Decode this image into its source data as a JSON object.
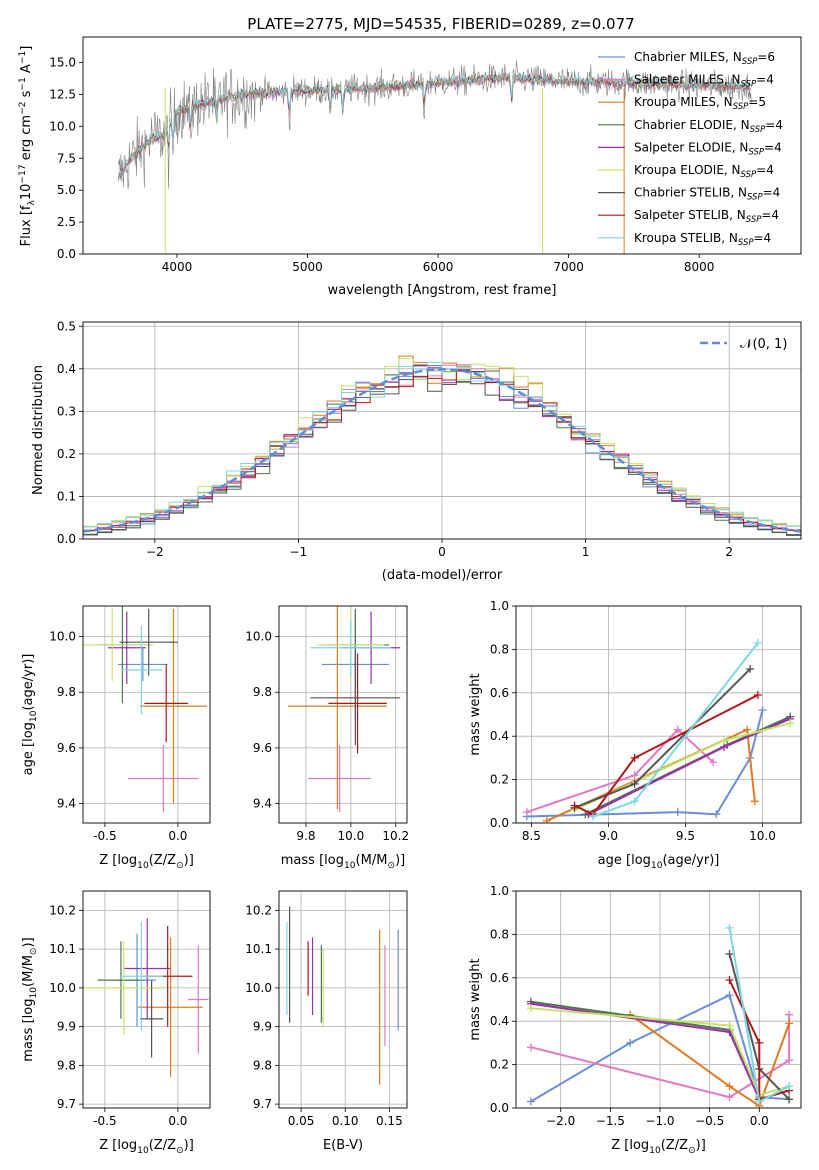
{
  "figure_title": "PLATE=2775, MJD=54535, FIBERID=0289, z=0.077",
  "colors": {
    "chabrier_miles": "#6a8fd8",
    "salpeter_miles": "#e377c2",
    "kroupa_miles": "#e07b20",
    "chabrier_elodie": "#4a7a4a",
    "salpeter_elodie": "#9b2fae",
    "kroupa_elodie": "#c6e26a",
    "chabrier_stelib": "#555555",
    "salpeter_stelib": "#b01818",
    "kroupa_stelib": "#7dd8df",
    "data": "#7f7f7f",
    "normal": "#5b8fd6"
  },
  "chart_data": [
    {
      "id": "spectrum",
      "type": "line",
      "title": "PLATE=2775, MJD=54535, FIBERID=0289, z=0.077",
      "xlabel": "wavelength [Angstrom, rest frame]",
      "ylabel_parts": [
        "Flux [f",
        "λ",
        "10",
        "−17",
        " erg cm",
        "−2",
        " s",
        "−1",
        " A",
        "−1",
        "]"
      ],
      "xlim": [
        3280,
        8780
      ],
      "ylim": [
        0,
        17
      ],
      "xticks": [
        4000,
        5000,
        6000,
        7000,
        8000
      ],
      "yticks": [
        0.0,
        2.5,
        5.0,
        7.5,
        10.0,
        12.5,
        15.0
      ],
      "legend_position": "right",
      "series": [
        {
          "key": "chabrier_miles",
          "name": "Chabrier MILES, N",
          "sub": "SSP",
          "eq": "=6"
        },
        {
          "key": "salpeter_miles",
          "name": "Salpeter MILES, N",
          "sub": "SSP",
          "eq": "=4"
        },
        {
          "key": "kroupa_miles",
          "name": "Kroupa MILES, N",
          "sub": "SSP",
          "eq": "=5"
        },
        {
          "key": "chabrier_elodie",
          "name": "Chabrier ELODIE, N",
          "sub": "SSP",
          "eq": "=4"
        },
        {
          "key": "salpeter_elodie",
          "name": "Salpeter ELODIE, N",
          "sub": "SSP",
          "eq": "=4"
        },
        {
          "key": "kroupa_elodie",
          "name": "Kroupa ELODIE, N",
          "sub": "SSP",
          "eq": "=4"
        },
        {
          "key": "chabrier_stelib",
          "name": "Chabrier STELIB, N",
          "sub": "SSP",
          "eq": "=4"
        },
        {
          "key": "salpeter_stelib",
          "name": "Salpeter STELIB, N",
          "sub": "SSP",
          "eq": "=4"
        },
        {
          "key": "kroupa_stelib",
          "name": "Kroupa STELIB, N",
          "sub": "SSP",
          "eq": "=4"
        }
      ],
      "continuum": [
        [
          3550,
          6.0
        ],
        [
          3650,
          7.5
        ],
        [
          3800,
          9.0
        ],
        [
          3900,
          9.3
        ],
        [
          4000,
          11.2
        ],
        [
          4200,
          11.8
        ],
        [
          4500,
          12.5
        ],
        [
          5000,
          12.8
        ],
        [
          5500,
          13.0
        ],
        [
          6000,
          13.4
        ],
        [
          6500,
          13.8
        ],
        [
          7000,
          13.5
        ],
        [
          7500,
          13.4
        ],
        [
          8000,
          13.2
        ],
        [
          8400,
          13.1
        ]
      ],
      "absorption_lines": [
        3934,
        3969,
        4102,
        4304,
        4861,
        5175,
        5270,
        5893,
        6563
      ],
      "vertical_spikes": [
        [
          3910,
          "kroupa_elodie"
        ],
        [
          6800,
          "kroupa_elodie"
        ],
        [
          7425,
          "kroupa_miles"
        ]
      ]
    },
    {
      "id": "residuals",
      "type": "histogram",
      "xlabel": "(data-model)/error",
      "ylabel": "Normed distribution",
      "xlim": [
        -2.5,
        2.5
      ],
      "ylim": [
        0,
        0.51
      ],
      "xticks": [
        -2,
        -1,
        0,
        1,
        2
      ],
      "xticklabels": [
        "−2",
        "−1",
        "0",
        "1",
        "2"
      ],
      "yticks": [
        0.0,
        0.1,
        0.2,
        0.3,
        0.4,
        0.5
      ],
      "grid": true,
      "bin_width": 0.1,
      "legend": {
        "label": "𝒩(0, 1)",
        "position": "top-right"
      },
      "normal_curve": {
        "mean": 0,
        "sigma": 1
      }
    },
    {
      "id": "age_vs_z",
      "type": "errorbar",
      "xlabel_parts": [
        "Z [log",
        "10",
        "(Z/Z",
        "⊙",
        ")]"
      ],
      "ylabel_parts": [
        "age  [log",
        "10",
        "(age/yr)]"
      ],
      "xlim": [
        -0.65,
        0.22
      ],
      "ylim": [
        9.33,
        10.11
      ],
      "xticks": [
        -0.5,
        0.0
      ],
      "yticks": [
        9.4,
        9.6,
        9.8,
        10.0
      ],
      "grid": true,
      "points": [
        {
          "key": "chabrier_miles",
          "x": -0.24,
          "y": 9.9,
          "xerr": 0.17,
          "yerr": 0.06
        },
        {
          "key": "salpeter_miles",
          "x": -0.1,
          "y": 9.49,
          "xerr": 0.24,
          "yerr": 0.12
        },
        {
          "key": "kroupa_miles",
          "x": -0.03,
          "y": 9.75,
          "xerr": 0.23,
          "yerr": 0.35
        },
        {
          "key": "chabrier_elodie",
          "x": -0.38,
          "y": 9.97,
          "xerr": 0.16,
          "yerr": 0.21
        },
        {
          "key": "salpeter_elodie",
          "x": -0.35,
          "y": 9.96,
          "xerr": 0.13,
          "yerr": 0.13
        },
        {
          "key": "kroupa_elodie",
          "x": -0.45,
          "y": 9.97,
          "xerr": 0.28,
          "yerr": 0.13
        },
        {
          "key": "chabrier_stelib",
          "x": -0.2,
          "y": 9.98,
          "xerr": 0.2,
          "yerr": 0.12
        },
        {
          "key": "salpeter_stelib",
          "x": -0.08,
          "y": 9.76,
          "xerr": 0.15,
          "yerr": 0.14
        },
        {
          "key": "kroupa_stelib",
          "x": -0.25,
          "y": 9.88,
          "xerr": 0.14,
          "yerr": 0.16
        }
      ]
    },
    {
      "id": "age_vs_mass",
      "type": "errorbar",
      "xlabel_parts": [
        "mass [log",
        "10",
        "(M/M",
        "⊙",
        ")]"
      ],
      "xlim": [
        9.68,
        10.25
      ],
      "ylim": [
        9.33,
        10.11
      ],
      "xticks": [
        9.8,
        10.0,
        10.2
      ],
      "yticks": [
        9.4,
        9.6,
        9.8,
        10.0
      ],
      "grid": true,
      "points": [
        {
          "key": "chabrier_miles",
          "x": 10.02,
          "y": 9.9,
          "xerr": 0.15,
          "yerr": 0.2
        },
        {
          "key": "salpeter_miles",
          "x": 9.95,
          "y": 9.49,
          "xerr": 0.14,
          "yerr": 0.12
        },
        {
          "key": "kroupa_miles",
          "x": 9.94,
          "y": 9.75,
          "xerr": 0.22,
          "yerr": 0.37
        },
        {
          "key": "chabrier_elodie",
          "x": 10.02,
          "y": 9.97,
          "xerr": 0.15,
          "yerr": 0.13
        },
        {
          "key": "salpeter_elodie",
          "x": 10.09,
          "y": 9.96,
          "xerr": 0.13,
          "yerr": 0.13
        },
        {
          "key": "kroupa_elodie",
          "x": 10.0,
          "y": 9.97,
          "xerr": 0.15,
          "yerr": 0.13
        },
        {
          "key": "chabrier_stelib",
          "x": 10.02,
          "y": 9.78,
          "xerr": 0.2,
          "yerr": 0.17
        },
        {
          "key": "salpeter_stelib",
          "x": 10.03,
          "y": 9.76,
          "xerr": 0.13,
          "yerr": 0.18
        },
        {
          "key": "kroupa_stelib",
          "x": 10.0,
          "y": 9.96,
          "xerr": 0.18,
          "yerr": 0.1
        }
      ]
    },
    {
      "id": "weight_vs_age",
      "type": "line",
      "xlabel_parts": [
        "age  [log",
        "10",
        "(age/yr)]"
      ],
      "ylabel": "mass weight",
      "xlim": [
        8.4,
        10.25
      ],
      "ylim": [
        0,
        1.0
      ],
      "xticks": [
        8.5,
        9.0,
        9.5,
        10.0
      ],
      "yticks": [
        0.0,
        0.2,
        0.4,
        0.6,
        0.8,
        1.0
      ],
      "grid": true,
      "series": [
        {
          "key": "chabrier_miles",
          "points": [
            [
              8.47,
              0.03
            ],
            [
              9.45,
              0.05
            ],
            [
              9.7,
              0.04
            ],
            [
              9.92,
              0.3
            ],
            [
              10.0,
              0.52
            ]
          ]
        },
        {
          "key": "salpeter_miles",
          "points": [
            [
              8.47,
              0.05
            ],
            [
              9.17,
              0.22
            ],
            [
              9.45,
              0.43
            ],
            [
              9.68,
              0.28
            ]
          ]
        },
        {
          "key": "kroupa_miles",
          "points": [
            [
              8.6,
              0.01
            ],
            [
              9.9,
              0.43
            ],
            [
              9.95,
              0.1
            ]
          ]
        },
        {
          "key": "chabrier_elodie",
          "points": [
            [
              8.85,
              0.04
            ],
            [
              9.77,
              0.36
            ],
            [
              10.18,
              0.49
            ]
          ]
        },
        {
          "key": "salpeter_elodie",
          "points": [
            [
              8.87,
              0.04
            ],
            [
              9.75,
              0.35
            ],
            [
              10.18,
              0.48
            ]
          ]
        },
        {
          "key": "kroupa_elodie",
          "points": [
            [
              8.78,
              0.06
            ],
            [
              9.75,
              0.38
            ],
            [
              10.18,
              0.46
            ]
          ]
        },
        {
          "key": "chabrier_stelib",
          "points": [
            [
              8.78,
              0.07
            ],
            [
              9.17,
              0.18
            ],
            [
              9.92,
              0.71
            ]
          ]
        },
        {
          "key": "salpeter_stelib",
          "points": [
            [
              8.78,
              0.08
            ],
            [
              8.9,
              0.04
            ],
            [
              9.17,
              0.3
            ],
            [
              9.97,
              0.59
            ]
          ]
        },
        {
          "key": "kroupa_stelib",
          "points": [
            [
              8.9,
              0.03
            ],
            [
              9.17,
              0.1
            ],
            [
              9.97,
              0.83
            ]
          ]
        }
      ]
    },
    {
      "id": "mass_vs_z",
      "type": "errorbar",
      "xlabel_parts": [
        "Z [log",
        "10",
        "(Z/Z",
        "⊙",
        ")]"
      ],
      "ylabel_parts": [
        "mass [log",
        "10",
        "(M/M",
        "⊙",
        ")]"
      ],
      "xlim": [
        -0.65,
        0.22
      ],
      "ylim": [
        9.69,
        10.25
      ],
      "xticks": [
        -0.5,
        0.0
      ],
      "yticks": [
        9.7,
        9.8,
        9.9,
        10.0,
        10.1,
        10.2
      ],
      "grid": true,
      "points": [
        {
          "key": "chabrier_miles",
          "x": -0.28,
          "y": 10.02,
          "xerr": 0.13,
          "yerr": 0.12
        },
        {
          "key": "salpeter_miles",
          "x": 0.14,
          "y": 9.97,
          "xerr": 0.07,
          "yerr": 0.14
        },
        {
          "key": "kroupa_miles",
          "x": -0.05,
          "y": 9.95,
          "xerr": 0.22,
          "yerr": 0.18
        },
        {
          "key": "chabrier_elodie",
          "x": -0.39,
          "y": 10.02,
          "xerr": 0.16,
          "yerr": 0.1
        },
        {
          "key": "salpeter_elodie",
          "x": -0.21,
          "y": 10.05,
          "xerr": 0.16,
          "yerr": 0.13
        },
        {
          "key": "kroupa_elodie",
          "x": -0.37,
          "y": 10.0,
          "xerr": 0.28,
          "yerr": 0.12
        },
        {
          "key": "chabrier_stelib",
          "x": -0.18,
          "y": 9.92,
          "xerr": 0.08,
          "yerr": 0.1
        },
        {
          "key": "salpeter_stelib",
          "x": -0.07,
          "y": 10.03,
          "xerr": 0.17,
          "yerr": 0.13
        },
        {
          "key": "kroupa_stelib",
          "x": -0.25,
          "y": 10.03,
          "xerr": 0.15,
          "yerr": 0.14
        }
      ]
    },
    {
      "id": "mass_vs_ebv",
      "type": "errorbar",
      "xlabel": "E(B-V)",
      "xlim": [
        0.025,
        0.17
      ],
      "ylim": [
        9.69,
        10.25
      ],
      "xticks": [
        0.05,
        0.1,
        0.15
      ],
      "xticklabels": [
        "0.05",
        "0.10",
        "0.15"
      ],
      "yticks": [
        9.7,
        9.8,
        9.9,
        10.0,
        10.1,
        10.2
      ],
      "grid": true,
      "points": [
        {
          "key": "chabrier_miles",
          "x": 0.16,
          "y": 10.02,
          "yerr": 0.13
        },
        {
          "key": "salpeter_miles",
          "x": 0.145,
          "y": 9.98,
          "yerr": 0.13
        },
        {
          "key": "kroupa_miles",
          "x": 0.139,
          "y": 9.95,
          "yerr": 0.2
        },
        {
          "key": "chabrier_elodie",
          "x": 0.073,
          "y": 10.01,
          "yerr": 0.1
        },
        {
          "key": "salpeter_elodie",
          "x": 0.063,
          "y": 10.03,
          "yerr": 0.1
        },
        {
          "key": "kroupa_elodie",
          "x": 0.075,
          "y": 10.0,
          "yerr": 0.1
        },
        {
          "key": "chabrier_stelib",
          "x": 0.037,
          "y": 10.06,
          "yerr": 0.15
        },
        {
          "key": "salpeter_stelib",
          "x": 0.058,
          "y": 10.05,
          "yerr": 0.07
        },
        {
          "key": "kroupa_stelib",
          "x": 0.034,
          "y": 10.05,
          "yerr": 0.12
        }
      ]
    },
    {
      "id": "weight_vs_z",
      "type": "line",
      "xlabel_parts": [
        "Z [log",
        "10",
        "(Z/Z",
        "⊙",
        ")]"
      ],
      "ylabel": "mass weight",
      "xlim": [
        -2.45,
        0.42
      ],
      "ylim": [
        0,
        1.0
      ],
      "xticks": [
        -2.0,
        -1.5,
        -1.0,
        -0.5,
        0.0
      ],
      "xticklabels": [
        "−2.0",
        "−1.5",
        "−1.0",
        "−0.5",
        "0.0"
      ],
      "yticks": [
        0.0,
        0.2,
        0.4,
        0.6,
        0.8,
        1.0
      ],
      "grid": true,
      "series": [
        {
          "key": "chabrier_miles",
          "points": [
            [
              -2.3,
              0.03
            ],
            [
              -1.3,
              0.3
            ],
            [
              -0.3,
              0.52
            ],
            [
              0.0,
              0.05
            ],
            [
              0.3,
              0.04
            ]
          ]
        },
        {
          "key": "salpeter_miles",
          "points": [
            [
              -2.3,
              0.28
            ],
            [
              -0.3,
              0.05
            ],
            [
              0.3,
              0.22
            ],
            [
              0.3,
              0.43
            ]
          ]
        },
        {
          "key": "kroupa_miles",
          "points": [
            [
              -1.3,
              0.43
            ],
            [
              -0.3,
              0.1
            ],
            [
              0.0,
              0.01
            ],
            [
              0.3,
              0.39
            ]
          ]
        },
        {
          "key": "chabrier_elodie",
          "points": [
            [
              -2.3,
              0.49
            ],
            [
              -0.3,
              0.36
            ],
            [
              0.0,
              0.04
            ]
          ]
        },
        {
          "key": "salpeter_elodie",
          "points": [
            [
              -2.3,
              0.48
            ],
            [
              -0.3,
              0.35
            ],
            [
              0.0,
              0.04
            ]
          ]
        },
        {
          "key": "kroupa_elodie",
          "points": [
            [
              -2.3,
              0.46
            ],
            [
              -0.3,
              0.38
            ],
            [
              0.0,
              0.06
            ],
            [
              0.3,
              0.1
            ]
          ]
        },
        {
          "key": "chabrier_stelib",
          "points": [
            [
              -0.3,
              0.71
            ],
            [
              0.0,
              0.18
            ],
            [
              0.3,
              0.04
            ]
          ]
        },
        {
          "key": "salpeter_stelib",
          "points": [
            [
              -0.3,
              0.59
            ],
            [
              0.0,
              0.3
            ],
            [
              0.0,
              0.04
            ],
            [
              0.3,
              0.08
            ]
          ]
        },
        {
          "key": "kroupa_stelib",
          "points": [
            [
              -0.3,
              0.83
            ],
            [
              0.0,
              0.03
            ],
            [
              0.3,
              0.1
            ]
          ]
        }
      ]
    }
  ]
}
